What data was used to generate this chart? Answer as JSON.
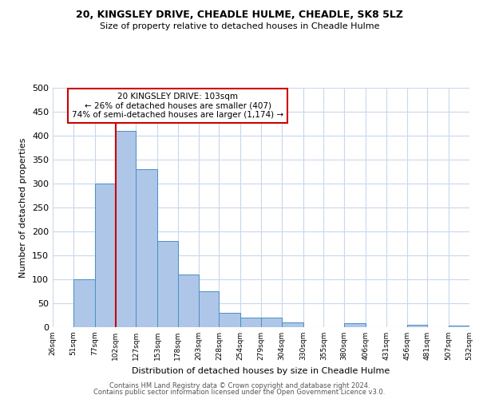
{
  "title": "20, KINGSLEY DRIVE, CHEADLE HULME, CHEADLE, SK8 5LZ",
  "subtitle": "Size of property relative to detached houses in Cheadle Hulme",
  "xlabel": "Distribution of detached houses by size in Cheadle Hulme",
  "ylabel": "Number of detached properties",
  "bar_values": [
    0,
    100,
    300,
    410,
    330,
    180,
    110,
    75,
    30,
    20,
    20,
    10,
    0,
    0,
    8,
    0,
    0,
    5,
    0,
    3
  ],
  "bin_edges": [
    26,
    51,
    77,
    102,
    127,
    153,
    178,
    203,
    228,
    254,
    279,
    304,
    330,
    355,
    380,
    406,
    431,
    456,
    481,
    507,
    532
  ],
  "tick_labels": [
    "26sqm",
    "51sqm",
    "77sqm",
    "102sqm",
    "127sqm",
    "153sqm",
    "178sqm",
    "203sqm",
    "228sqm",
    "254sqm",
    "279sqm",
    "304sqm",
    "330sqm",
    "355sqm",
    "380sqm",
    "406sqm",
    "431sqm",
    "456sqm",
    "481sqm",
    "507sqm",
    "532sqm"
  ],
  "bar_color": "#aec6e8",
  "bar_edge_color": "#4a90c4",
  "property_size": 103,
  "property_line_color": "#cc0000",
  "annotation_line1": "20 KINGSLEY DRIVE: 103sqm",
  "annotation_line2": "← 26% of detached houses are smaller (407)",
  "annotation_line3": "74% of semi-detached houses are larger (1,174) →",
  "annotation_box_color": "#ffffff",
  "annotation_box_edge_color": "#cc0000",
  "ylim": [
    0,
    500
  ],
  "yticks": [
    0,
    50,
    100,
    150,
    200,
    250,
    300,
    350,
    400,
    450,
    500
  ],
  "footer1": "Contains HM Land Registry data © Crown copyright and database right 2024.",
  "footer2": "Contains public sector information licensed under the Open Government Licence v3.0.",
  "background_color": "#ffffff",
  "grid_color": "#c8d8ec"
}
